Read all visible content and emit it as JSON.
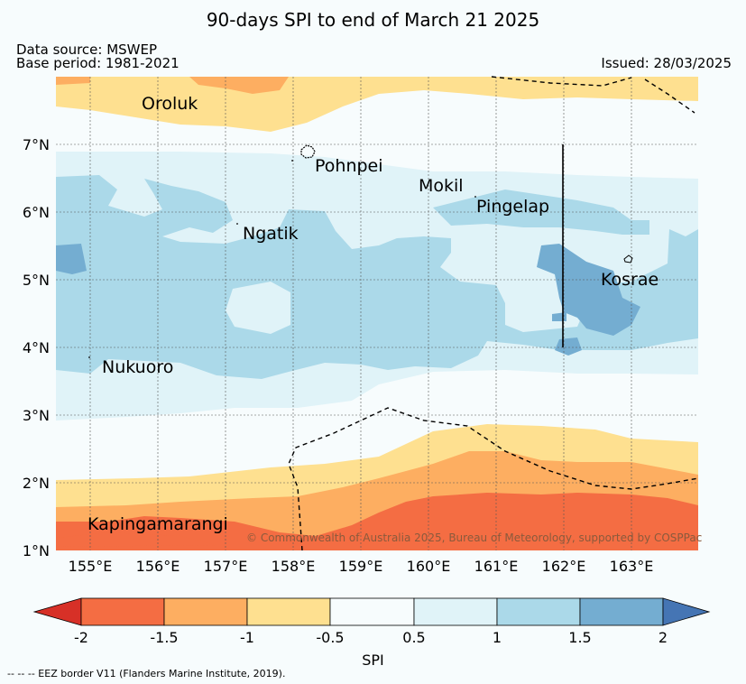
{
  "title": "90-days SPI to end of March 21 2025",
  "data_source": "Data source: MSWEP",
  "base_period": "Base period: 1981-2021",
  "issued": "Issued: 28/03/2025",
  "latitude_labels": [
    "7°N",
    "6°N",
    "5°N",
    "4°N",
    "3°N",
    "2°N",
    "1°N"
  ],
  "longitude_labels": [
    "155°E",
    "156°E",
    "157°E",
    "158°E",
    "159°E",
    "160°E",
    "161°E",
    "162°E",
    "163°E"
  ],
  "places": {
    "oroluk": "Oroluk",
    "pohnpei": "Pohnpei",
    "mokil": "Mokil",
    "pingelap": "Pingelap",
    "ngatik": "Ngatik",
    "kosrae": "Kosrae",
    "nukuoro": "Nukuoro",
    "kapingamarangi": "Kapingamarangi"
  },
  "copyright": "© Commonwealth of Australia 2025, Bureau of Meteorology, supported by COSPPac",
  "colorbar": {
    "label": "SPI",
    "ticks": [
      "-2",
      "-1.5",
      "-1",
      "-0.5",
      "0.5",
      "1",
      "1.5",
      "2"
    ],
    "colors": {
      "below_-2": "#d73027",
      "-2_to_-1.5": "#f46d43",
      "-1.5_to_-1": "#fdae61",
      "-1_to_-0.5": "#fee090",
      "-0.5_to_0.5": "#f7fcfd",
      "0.5_to_1": "#e0f3f8",
      "1_to_1.5": "#abd9e9",
      "1.5_to_2": "#74add1",
      "above_2": "#4575b4"
    }
  },
  "footnote": "-- -- -- EEZ border V11 (Flanders Marine Institute, 2019)."
}
